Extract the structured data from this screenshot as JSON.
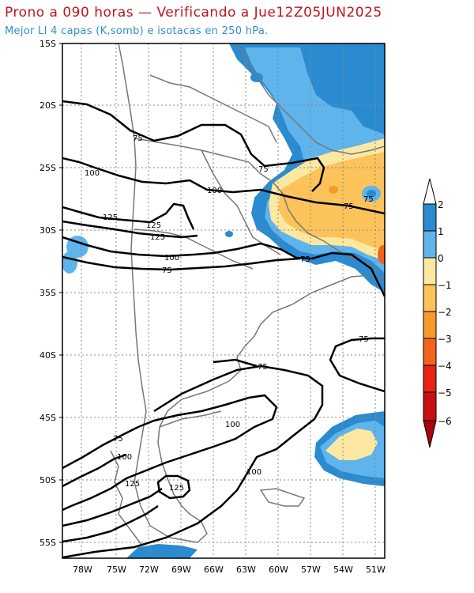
{
  "header": {
    "title": "Prono a 090 horas — Verificando a Jue12Z05JUN2025",
    "subtitle": "Mejor LI 4 capas (K,somb) e isotacas en 250 hPa."
  },
  "map": {
    "lat_ticks": [
      "15S",
      "20S",
      "25S",
      "30S",
      "35S",
      "40S",
      "45S",
      "50S",
      "55S"
    ],
    "lon_ticks": [
      "78W",
      "75W",
      "72W",
      "69W",
      "66W",
      "63W",
      "60W",
      "57W",
      "54W",
      "51W"
    ],
    "contour_labels": [
      "75",
      "100",
      "125",
      "125",
      "125",
      "100",
      "75",
      "75",
      "75",
      "75",
      "75",
      "75",
      "100",
      "75",
      "100",
      "125",
      "125",
      "100"
    ]
  },
  "colorbar": {
    "labels": [
      "2",
      "1",
      "0",
      "−1",
      "−2",
      "−3",
      "−4",
      "−5",
      "−6"
    ],
    "colors": [
      "#2a8bd0",
      "#5fb4ec",
      "#fce8a0",
      "#fbc35a",
      "#f79a2c",
      "#f2641c",
      "#e52416",
      "#c80f12",
      "#a5050b"
    ]
  },
  "colors": {
    "blue_dark": "#2a8bd0",
    "blue_light": "#5fb4ec",
    "yellow_pale": "#fce8a0",
    "orange_light": "#fbc35a",
    "orange": "#f79a2c",
    "red_orange": "#f2641c"
  }
}
